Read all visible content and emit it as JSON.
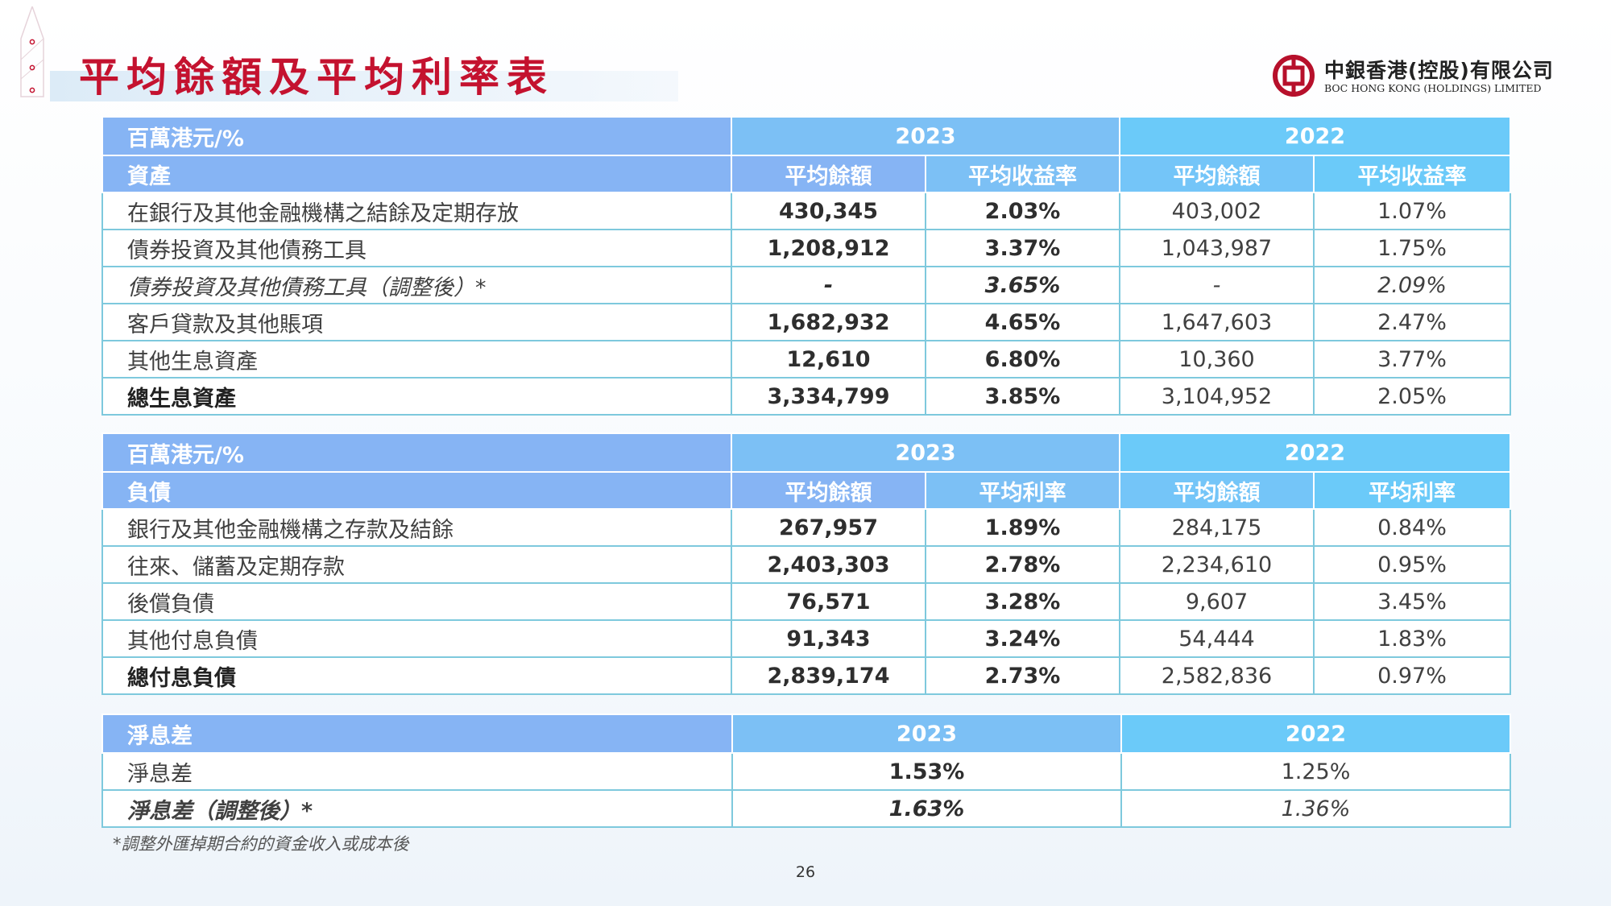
{
  "title": "平均餘額及平均利率表",
  "logo": {
    "cn": "中銀香港(控股)有限公司",
    "en": "BOC HONG KONG (HOLDINGS) LIMITED"
  },
  "assets": {
    "unit": "百萬港元/%",
    "section": "資產",
    "years": [
      "2023",
      "2022"
    ],
    "cols": [
      "平均餘額",
      "平均收益率",
      "平均餘額",
      "平均收益率"
    ],
    "rows": [
      {
        "label": "在銀行及其他金融機構之結餘及定期存放",
        "v": [
          "430,345",
          "2.03%",
          "403,002",
          "1.07%"
        ]
      },
      {
        "label": "債券投資及其他債務工具",
        "v": [
          "1,208,912",
          "3.37%",
          "1,043,987",
          "1.75%"
        ]
      },
      {
        "label": "債券投資及其他債務工具（調整後）*",
        "v": [
          "-",
          "3.65%",
          "-",
          "2.09%"
        ]
      },
      {
        "label": "客戶貸款及其他賬項",
        "v": [
          "1,682,932",
          "4.65%",
          "1,647,603",
          "2.47%"
        ]
      },
      {
        "label": "其他生息資產",
        "v": [
          "12,610",
          "6.80%",
          "10,360",
          "3.77%"
        ]
      },
      {
        "label": "總生息資產",
        "v": [
          "3,334,799",
          "3.85%",
          "3,104,952",
          "2.05%"
        ]
      }
    ]
  },
  "liabilities": {
    "unit": "百萬港元/%",
    "section": "負債",
    "years": [
      "2023",
      "2022"
    ],
    "cols": [
      "平均餘額",
      "平均利率",
      "平均餘額",
      "平均利率"
    ],
    "rows": [
      {
        "label": "銀行及其他金融機構之存款及結餘",
        "v": [
          "267,957",
          "1.89%",
          "284,175",
          "0.84%"
        ]
      },
      {
        "label": "往來、儲蓄及定期存款",
        "v": [
          "2,403,303",
          "2.78%",
          "2,234,610",
          "0.95%"
        ]
      },
      {
        "label": "後償負債",
        "v": [
          "76,571",
          "3.28%",
          "9,607",
          "3.45%"
        ]
      },
      {
        "label": "其他付息負債",
        "v": [
          "91,343",
          "3.24%",
          "54,444",
          "1.83%"
        ]
      },
      {
        "label": "總付息負債",
        "v": [
          "2,839,174",
          "2.73%",
          "2,582,836",
          "0.97%"
        ]
      }
    ]
  },
  "nim": {
    "section": "淨息差",
    "years": [
      "2023",
      "2022"
    ],
    "rows": [
      {
        "label": "淨息差",
        "v": [
          "1.53%",
          "1.25%"
        ]
      },
      {
        "label": "淨息差（調整後）*",
        "v": [
          "1.63%",
          "1.36%"
        ]
      }
    ]
  },
  "footnote": "*調整外匯掉期合約的資金收入或成本後",
  "page_number": "26",
  "colors": {
    "title_red": "#c4122f",
    "header_blue": "#86b4f4",
    "header_cyan": "#6bcaf9",
    "border": "#7ec9dd"
  }
}
